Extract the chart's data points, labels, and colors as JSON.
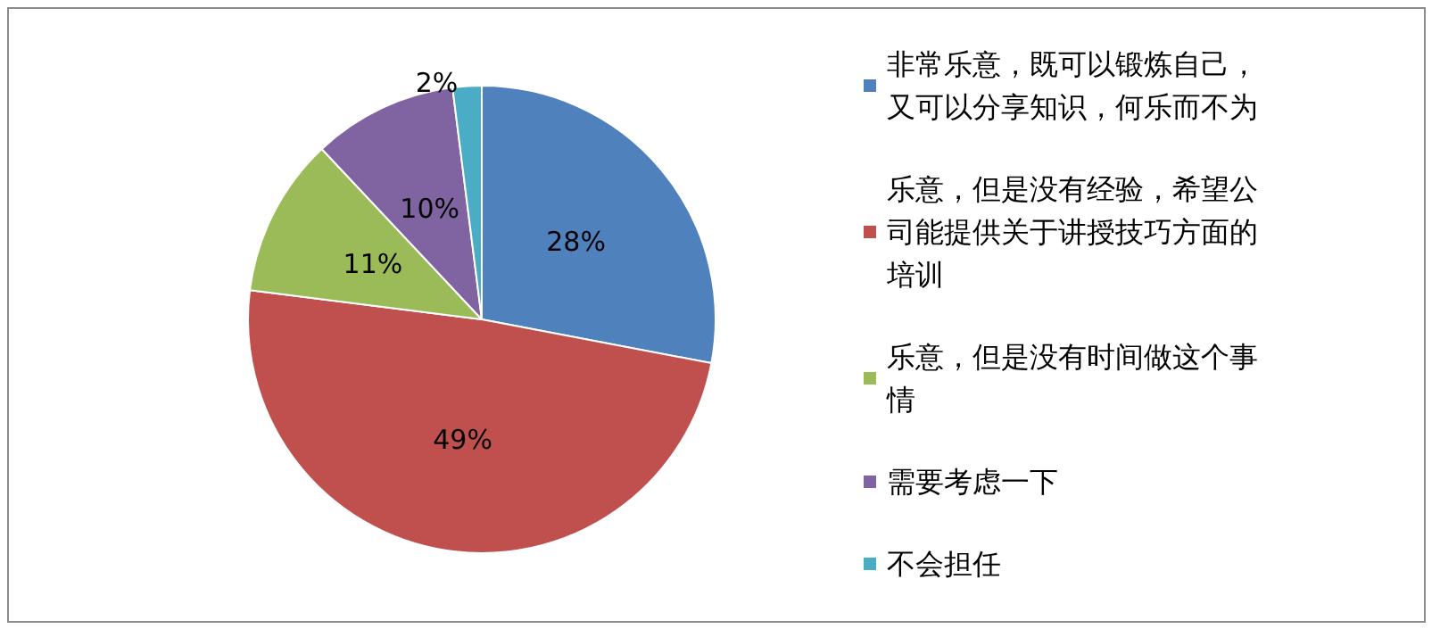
{
  "chart_data": {
    "type": "pie",
    "categories": [
      "非常乐意，既可以锻炼自己，又可以分享知识，何乐而不为",
      "乐意，但是没有经验，希望公司能提供关于讲授技巧方面的培训",
      "乐意，但是没有时间做这个事情",
      "需要考虑一下",
      "不会担任"
    ],
    "values": [
      28,
      49,
      11,
      10,
      2
    ],
    "colors": [
      "#4f81bd",
      "#c0504d",
      "#9bbb59",
      "#8064a2",
      "#4bacc6"
    ],
    "value_labels": [
      "28%",
      "49%",
      "11%",
      "10%",
      "2%"
    ],
    "legend": "right"
  }
}
